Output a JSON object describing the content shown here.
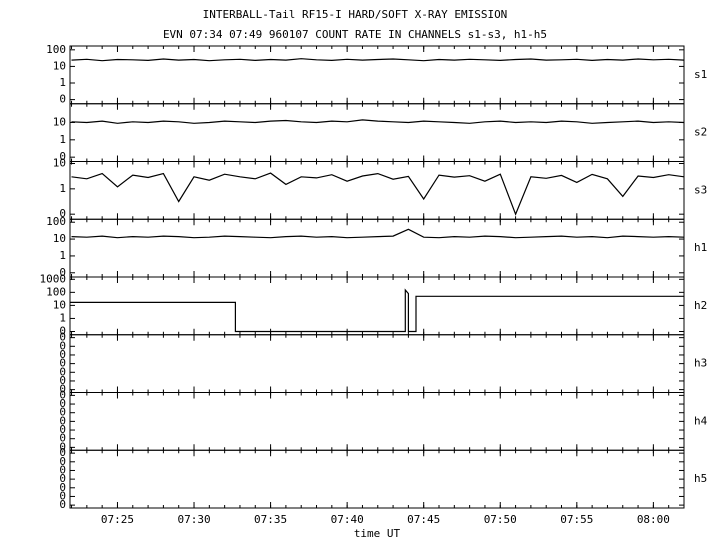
{
  "chart_data": {
    "type": "line",
    "title": "INTERBALL-Tail RF15-I HARD/SOFT X-RAY EMISSION",
    "subtitle": "EVN 07:34 07:49 960107  COUNT RATE IN CHANNELS s1-s3, h1-h5",
    "xlabel": "time UT",
    "xlim": [
      441.9,
      482.0
    ],
    "xticks": [
      {
        "value": 445,
        "label": "07:25"
      },
      {
        "value": 450,
        "label": "07:30"
      },
      {
        "value": 455,
        "label": "07:35"
      },
      {
        "value": 460,
        "label": "07:40"
      },
      {
        "value": 465,
        "label": "07:45"
      },
      {
        "value": 470,
        "label": "07:50"
      },
      {
        "value": 475,
        "label": "07:55"
      },
      {
        "value": 480,
        "label": "08:00"
      }
    ],
    "xminorticks": [
      442,
      443,
      444,
      445,
      446,
      447,
      448,
      449,
      450,
      451,
      452,
      453,
      454,
      455,
      456,
      457,
      458,
      459,
      460,
      461,
      462,
      463,
      464,
      465,
      466,
      467,
      468,
      469,
      470,
      471,
      472,
      473,
      474,
      475,
      476,
      477,
      478,
      479,
      480,
      481,
      482
    ],
    "x": [
      442,
      443,
      444,
      445,
      446,
      447,
      448,
      449,
      450,
      451,
      452,
      453,
      454,
      455,
      456,
      457,
      458,
      459,
      460,
      461,
      462,
      463,
      464,
      465,
      466,
      467,
      468,
      469,
      470,
      471,
      472,
      473,
      474,
      475,
      476,
      477,
      478,
      479,
      480,
      481,
      482
    ],
    "panels": [
      {
        "label": "s1",
        "yscale": "symlog",
        "linthresh": 1,
        "ylim": [
          -0.25,
          170
        ],
        "yticks": [
          0,
          1,
          10,
          100
        ],
        "series": [
          {
            "name": "s1",
            "color": "#000000",
            "values": [
              24,
              27,
              22,
              26,
              25,
              23,
              28,
              24,
              26,
              22,
              25,
              27,
              23,
              26,
              24,
              29,
              25,
              23,
              27,
              24,
              26,
              28,
              25,
              22,
              26,
              24,
              27,
              25,
              23,
              26,
              28,
              24,
              25,
              27,
              23,
              26,
              24,
              28,
              25,
              27,
              24
            ]
          }
        ]
      },
      {
        "label": "s2",
        "yscale": "symlog",
        "linthresh": 1,
        "ylim": [
          -0.25,
          120
        ],
        "yticks": [
          0,
          1,
          10
        ],
        "series": [
          {
            "name": "s2",
            "color": "#000000",
            "values": [
              11,
              10,
              12,
              9,
              11,
              10,
              12,
              11,
              9,
              10,
              12,
              11,
              10,
              12,
              13,
              11,
              10,
              12,
              11,
              14,
              12,
              11,
              10,
              12,
              11,
              10,
              9,
              11,
              12,
              10,
              11,
              10,
              12,
              11,
              9,
              10,
              11,
              12,
              10,
              11,
              10
            ]
          }
        ]
      },
      {
        "label": "s3",
        "yscale": "symlog",
        "linthresh": 1,
        "ylim": [
          -0.2,
          12
        ],
        "yticks": [
          0,
          1,
          10
        ],
        "series": [
          {
            "name": "s3",
            "color": "#000000",
            "values": [
              3,
              2.5,
              4,
              1.2,
              3.5,
              2.8,
              4,
              0.5,
              3,
              2.2,
              3.8,
              3,
              2.5,
              4.2,
              1.5,
              3,
              2.7,
              3.6,
              2,
              3.2,
              4,
              2.4,
              3.1,
              0.6,
              3.5,
              2.9,
              3.3,
              2,
              3.8,
              0,
              3,
              2.6,
              3.4,
              1.8,
              3.7,
              2.5,
              0.7,
              3.2,
              2.8,
              3.6,
              3
            ]
          }
        ]
      },
      {
        "label": "h1",
        "yscale": "symlog",
        "linthresh": 1,
        "ylim": [
          -0.25,
          150
        ],
        "yticks": [
          0,
          1,
          10,
          100
        ],
        "series": [
          {
            "name": "h1",
            "color": "#000000",
            "values": [
              14,
              13,
              15,
              12,
              14,
              13,
              15,
              14,
              12,
              13,
              15,
              14,
              13,
              12,
              14,
              15,
              13,
              14,
              12,
              13,
              14,
              15,
              38,
              13,
              12,
              14,
              13,
              15,
              14,
              12,
              13,
              14,
              15,
              13,
              14,
              12,
              15,
              14,
              13,
              14,
              13
            ]
          }
        ]
      },
      {
        "label": "h2",
        "yscale": "symlog",
        "linthresh": 1,
        "ylim": [
          -0.25,
          1500
        ],
        "yticks": [
          0,
          1,
          10,
          100,
          1000
        ],
        "series": [
          {
            "name": "h2",
            "color": "#000000",
            "x": [
              441.9,
              452.7,
              452.7,
              463.8,
              463.8,
              464.0,
              464.0,
              464.5,
              464.5,
              482.0
            ],
            "values": [
              17,
              17,
              0,
              0,
              150,
              80,
              0,
              0,
              50,
              50
            ]
          }
        ]
      },
      {
        "label": "h3",
        "yscale": "linear",
        "ylim": [
          -0.05,
          0.95
        ],
        "yticks": [
          {
            "value": 0,
            "label": "0"
          },
          {
            "value": 0.15,
            "label": "0"
          },
          {
            "value": 0.3,
            "label": "0"
          },
          {
            "value": 0.45,
            "label": "0"
          },
          {
            "value": 0.6,
            "label": "0"
          },
          {
            "value": 0.75,
            "label": "0"
          },
          {
            "value": 0.9,
            "label": "0"
          }
        ],
        "series": []
      },
      {
        "label": "h4",
        "yscale": "linear",
        "ylim": [
          -0.05,
          0.95
        ],
        "yticks": [
          {
            "value": 0,
            "label": "0"
          },
          {
            "value": 0.15,
            "label": "0"
          },
          {
            "value": 0.3,
            "label": "0"
          },
          {
            "value": 0.45,
            "label": "0"
          },
          {
            "value": 0.6,
            "label": "0"
          },
          {
            "value": 0.75,
            "label": "0"
          },
          {
            "value": 0.9,
            "label": "0"
          }
        ],
        "series": []
      },
      {
        "label": "h5",
        "yscale": "linear",
        "ylim": [
          -0.05,
          0.95
        ],
        "yticks": [
          {
            "value": 0,
            "label": "0"
          },
          {
            "value": 0.15,
            "label": "0"
          },
          {
            "value": 0.3,
            "label": "0"
          },
          {
            "value": 0.45,
            "label": "0"
          },
          {
            "value": 0.6,
            "label": "0"
          },
          {
            "value": 0.75,
            "label": "0"
          },
          {
            "value": 0.9,
            "label": "0"
          }
        ],
        "series": []
      }
    ]
  }
}
